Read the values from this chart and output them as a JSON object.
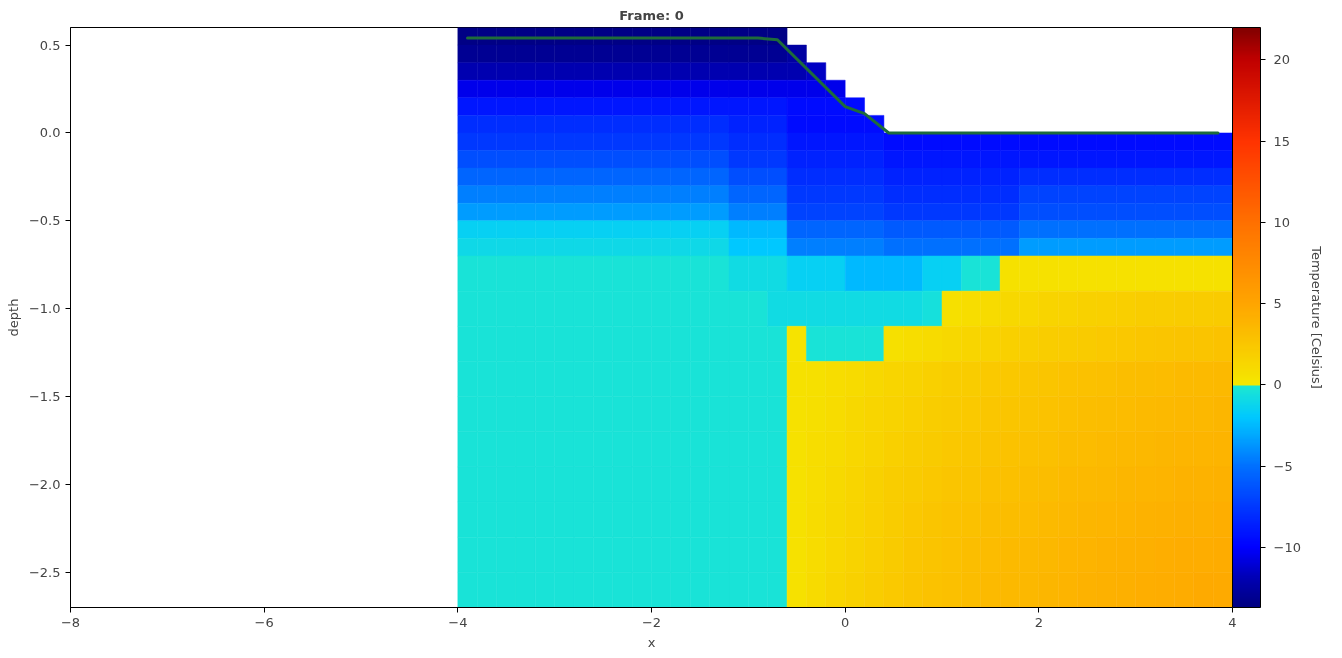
{
  "chart_data": {
    "type": "heatmap",
    "title": "Frame: 0",
    "xlabel": "x",
    "ylabel": "depth",
    "clabel": "Temperature [Celsius]",
    "xlim": [
      -8,
      4
    ],
    "ylim": [
      -2.7,
      0.6
    ],
    "xticks": [
      {
        "value": -8,
        "label": "−8"
      },
      {
        "value": -6,
        "label": "−6"
      },
      {
        "value": -4,
        "label": "−4"
      },
      {
        "value": -2,
        "label": "−2"
      },
      0,
      2,
      4
    ],
    "yticks": [
      {
        "value": -2.5,
        "label": "−2.5"
      },
      {
        "value": -2,
        "label": "−2.0"
      },
      {
        "value": -1.5,
        "label": "−1.5"
      },
      {
        "value": -1,
        "label": "−1.0"
      },
      {
        "value": -0.5,
        "label": "−0.5"
      },
      {
        "value": 0,
        "label": "0.0"
      },
      0.5
    ],
    "clim": [
      -13.7,
      22
    ],
    "cticks": [
      {
        "value": -10,
        "label": "−10"
      },
      {
        "value": -5,
        "label": "−5"
      },
      0,
      5,
      10,
      15,
      20
    ],
    "x": [
      -3.9,
      -3.7,
      -3.5,
      -3.3,
      -3.1,
      -2.9,
      -2.7,
      -2.5,
      -2.3,
      -2.1,
      -1.9,
      -1.7,
      -1.5,
      -1.3,
      -1.1,
      -0.9,
      -0.7,
      -0.5,
      -0.3,
      -0.1,
      0.1,
      0.3,
      0.5,
      0.7,
      0.9,
      1.1,
      1.3,
      1.5,
      1.7,
      1.9,
      2.1,
      2.3,
      2.5,
      2.7,
      2.9,
      3.1,
      3.3,
      3.5,
      3.7,
      3.9
    ],
    "y": [
      0.55,
      0.45,
      0.35,
      0.25,
      0.15,
      0.05,
      -0.05,
      -0.15,
      -0.25,
      -0.35,
      -0.45,
      -0.55,
      -0.65,
      -0.8,
      -1.0,
      -1.2,
      -1.4,
      -1.6,
      -1.8,
      -2.0,
      -2.2,
      -2.4,
      -2.6
    ],
    "cells": [
      [
        -13.5,
        -13.5,
        -13.5,
        -13.5,
        -13.5,
        -13.5,
        -13.5,
        -13.5,
        -13.5,
        -13.5,
        -13.5,
        -13.5,
        -13.5,
        -13.5,
        -13.5,
        -13.5,
        -13.5,
        null,
        null,
        null,
        null,
        null,
        null,
        null,
        null,
        null,
        null,
        null,
        null,
        null,
        null,
        null,
        null,
        null,
        null,
        null,
        null,
        null,
        null,
        null
      ],
      [
        -13,
        -13,
        -13,
        -13,
        -13,
        -13,
        -13,
        -13,
        -13,
        -13,
        -13,
        -13,
        -13,
        -13,
        -13,
        -13,
        -13,
        -12.5,
        null,
        null,
        null,
        null,
        null,
        null,
        null,
        null,
        null,
        null,
        null,
        null,
        null,
        null,
        null,
        null,
        null,
        null,
        null,
        null,
        null,
        null
      ],
      [
        -12,
        -12,
        -12,
        -12,
        -12,
        -12,
        -12,
        -12,
        -12,
        -12,
        -12,
        -12,
        -12,
        -12,
        -12,
        -12,
        -12,
        -12,
        -11.5,
        null,
        null,
        null,
        null,
        null,
        null,
        null,
        null,
        null,
        null,
        null,
        null,
        null,
        null,
        null,
        null,
        null,
        null,
        null,
        null,
        null
      ],
      [
        -10.5,
        -10.5,
        -10.5,
        -10.5,
        -10.5,
        -10.5,
        -10.5,
        -10.5,
        -10.5,
        -10.5,
        -10.5,
        -10.5,
        -10.5,
        -10.5,
        -10.5,
        -10.5,
        -10.5,
        -10.5,
        -10.5,
        -10.5,
        null,
        null,
        null,
        null,
        null,
        null,
        null,
        null,
        null,
        null,
        null,
        null,
        null,
        null,
        null,
        null,
        null,
        null,
        null,
        null
      ],
      [
        -9,
        -9,
        -9,
        -9,
        -9,
        -9,
        -9,
        -9,
        -9,
        -9,
        -9,
        -9,
        -9,
        -9,
        -9,
        -9,
        -9,
        -9.5,
        -9.5,
        -9.5,
        -9.5,
        null,
        null,
        null,
        null,
        null,
        null,
        null,
        null,
        null,
        null,
        null,
        null,
        null,
        null,
        null,
        null,
        null,
        null,
        null
      ],
      [
        -8,
        -8,
        -8,
        -8,
        -8,
        -8,
        -8,
        -8,
        -8,
        -8,
        -8,
        -8,
        -8,
        -8,
        -8.5,
        -8.5,
        -8.5,
        -9.5,
        -9.5,
        -9.5,
        -9.5,
        -9.5,
        null,
        null,
        null,
        null,
        null,
        null,
        null,
        null,
        null,
        null,
        null,
        null,
        null,
        null,
        null,
        null,
        null,
        null
      ],
      [
        -7.5,
        -7.5,
        -7.5,
        -7.5,
        -7.5,
        -7.5,
        -7.5,
        -7.5,
        -7.5,
        -7.5,
        -7.5,
        -7.5,
        -7.5,
        -7.5,
        -8,
        -8,
        -8,
        -9,
        -9,
        -9,
        -9,
        -9,
        -9.5,
        -9.5,
        -9.5,
        -9.5,
        -9.5,
        -9.5,
        -9.5,
        -9.5,
        -9.5,
        -9.5,
        -9.5,
        -9.5,
        -9.5,
        -9.5,
        -9.5,
        -9.5,
        -9.5,
        -9.5
      ],
      [
        -6.5,
        -6.5,
        -6.5,
        -6.5,
        -6.5,
        -6.5,
        -6.5,
        -6.5,
        -6.5,
        -6.5,
        -6.5,
        -6.5,
        -6.5,
        -6.5,
        -7.5,
        -7.5,
        -7.5,
        -8.5,
        -8.5,
        -8.5,
        -8.5,
        -8.5,
        -9,
        -9,
        -9,
        -9,
        -9,
        -9,
        -9,
        -9,
        -9,
        -9,
        -9,
        -9,
        -9,
        -9,
        -9,
        -9,
        -9,
        -9
      ],
      [
        -5.5,
        -5.5,
        -5.5,
        -5.5,
        -5.5,
        -5.5,
        -5.5,
        -5.5,
        -5.5,
        -5.5,
        -5.5,
        -5.5,
        -5.5,
        -5.5,
        -6.5,
        -6.5,
        -6.5,
        -8,
        -8,
        -8,
        -8,
        -8,
        -8.5,
        -8.5,
        -8.5,
        -8.5,
        -8.5,
        -8.5,
        -8.5,
        -8,
        -8,
        -8,
        -8,
        -8,
        -8,
        -8,
        -8,
        -8,
        -8,
        -8
      ],
      [
        -4.5,
        -4.5,
        -4.5,
        -4.5,
        -4.5,
        -4.5,
        -4.5,
        -4.5,
        -4.5,
        -4.5,
        -4.5,
        -4.5,
        -4.5,
        -4.5,
        -5.5,
        -5.5,
        -5.5,
        -7.5,
        -7.5,
        -7.5,
        -7.5,
        -7.5,
        -8,
        -8,
        -8,
        -8,
        -8,
        -8,
        -8,
        -7,
        -7,
        -7,
        -7,
        -7,
        -7,
        -7,
        -7,
        -7,
        -7,
        -7
      ],
      [
        -3.5,
        -3.5,
        -3.5,
        -3.5,
        -3.5,
        -3.5,
        -3.5,
        -3.5,
        -3.5,
        -3.5,
        -3.5,
        -3.5,
        -3.5,
        -3.5,
        -4.5,
        -4.5,
        -4.5,
        -7,
        -7,
        -7,
        -7,
        -7,
        -7.5,
        -7.5,
        -7.5,
        -7.5,
        -7.5,
        -7.5,
        -7.5,
        -6.5,
        -6.5,
        -6.5,
        -6.5,
        -6.5,
        -6.5,
        -6.5,
        -6.5,
        -6.5,
        -6.5,
        -6.5
      ],
      [
        -1.5,
        -1.5,
        -1.5,
        -1.5,
        -1.5,
        -1.5,
        -1.5,
        -1.5,
        -1.5,
        -1.5,
        -1.5,
        -1.5,
        -1.5,
        -1.5,
        -2.5,
        -2.5,
        -2.5,
        -5.5,
        -5.5,
        -5.5,
        -5.5,
        -5.5,
        -6,
        -6,
        -6,
        -6,
        -6,
        -6,
        -6,
        -5,
        -5,
        -5,
        -5,
        -5,
        -5,
        -5,
        -5,
        -5,
        -5,
        -5
      ],
      [
        -1,
        -1,
        -1,
        -1,
        -1,
        -1,
        -1,
        -1,
        -1,
        -1,
        -1,
        -1,
        -1,
        -1,
        -2,
        -2,
        -2,
        -4.5,
        -4.5,
        -4.5,
        -4.5,
        -4.5,
        -5,
        -5,
        -5,
        -5,
        -5,
        -5,
        -5,
        -3.5,
        -3.5,
        -3.5,
        -3.5,
        -3.5,
        -3.5,
        -3.5,
        -3.5,
        -3.5,
        -3.5,
        -3.5
      ],
      [
        -0.3,
        -0.3,
        -0.3,
        -0.3,
        -0.3,
        -0.3,
        -0.3,
        -0.3,
        -0.3,
        -0.3,
        -0.3,
        -0.3,
        -0.3,
        -0.3,
        -0.8,
        -0.8,
        -0.8,
        -1.5,
        -1.5,
        -1.5,
        -2.5,
        -2.5,
        -2.5,
        -2.5,
        -1.5,
        -1.5,
        -0.3,
        -0.3,
        0.5,
        0.5,
        0.5,
        0.5,
        0.5,
        0.5,
        0.5,
        0.5,
        0.5,
        0.5,
        0.5,
        0.5
      ],
      [
        -0.3,
        -0.3,
        -0.3,
        -0.3,
        -0.3,
        -0.3,
        -0.3,
        -0.3,
        -0.3,
        -0.3,
        -0.3,
        -0.3,
        -0.3,
        -0.3,
        -0.3,
        -0.3,
        -0.8,
        -0.8,
        -0.8,
        -0.8,
        -0.8,
        -0.8,
        -0.8,
        -0.8,
        -0.5,
        0.6,
        0.8,
        1,
        1.2,
        1.3,
        1.5,
        1.6,
        1.7,
        1.8,
        1.9,
        2,
        2,
        2.1,
        2.1,
        2.2
      ],
      [
        -0.3,
        -0.3,
        -0.3,
        -0.3,
        -0.3,
        -0.3,
        -0.3,
        -0.3,
        -0.3,
        -0.3,
        -0.3,
        -0.3,
        -0.3,
        -0.3,
        -0.3,
        -0.3,
        -0.3,
        0.4,
        -0.3,
        -0.3,
        -0.3,
        -0.3,
        0.6,
        0.8,
        1,
        1.2,
        1.4,
        1.6,
        1.8,
        1.9,
        2,
        2.1,
        2.2,
        2.3,
        2.4,
        2.5,
        2.6,
        2.7,
        2.7,
        2.8
      ],
      [
        -0.3,
        -0.3,
        -0.3,
        -0.3,
        -0.3,
        -0.3,
        -0.3,
        -0.3,
        -0.3,
        -0.3,
        -0.3,
        -0.3,
        -0.3,
        -0.3,
        -0.3,
        -0.3,
        -0.3,
        0.5,
        0.6,
        0.8,
        1,
        1.2,
        1.4,
        1.6,
        1.8,
        2,
        2.1,
        2.3,
        2.4,
        2.5,
        2.6,
        2.8,
        2.9,
        3,
        3.1,
        3.2,
        3.3,
        3.4,
        3.4,
        3.5
      ],
      [
        -0.3,
        -0.3,
        -0.3,
        -0.3,
        -0.3,
        -0.3,
        -0.3,
        -0.3,
        -0.3,
        -0.3,
        -0.3,
        -0.3,
        -0.3,
        -0.3,
        -0.3,
        -0.3,
        -0.3,
        0.5,
        0.7,
        0.9,
        1.2,
        1.4,
        1.6,
        1.8,
        2,
        2.2,
        2.3,
        2.5,
        2.6,
        2.7,
        2.8,
        3,
        3.1,
        3.2,
        3.3,
        3.4,
        3.5,
        3.6,
        3.6,
        3.7
      ],
      [
        -0.3,
        -0.3,
        -0.3,
        -0.3,
        -0.3,
        -0.3,
        -0.3,
        -0.3,
        -0.3,
        -0.3,
        -0.3,
        -0.3,
        -0.3,
        -0.3,
        -0.3,
        -0.3,
        -0.3,
        0.5,
        0.8,
        1,
        1.3,
        1.5,
        1.8,
        2,
        2.2,
        2.4,
        2.5,
        2.7,
        2.8,
        2.9,
        3,
        3.2,
        3.3,
        3.4,
        3.5,
        3.6,
        3.7,
        3.8,
        3.8,
        3.9
      ],
      [
        -0.3,
        -0.3,
        -0.3,
        -0.3,
        -0.3,
        -0.3,
        -0.3,
        -0.3,
        -0.3,
        -0.3,
        -0.3,
        -0.3,
        -0.3,
        -0.3,
        -0.3,
        -0.3,
        -0.3,
        0.5,
        0.8,
        1.1,
        1.4,
        1.7,
        2,
        2.2,
        2.4,
        2.6,
        2.7,
        2.9,
        3,
        3.1,
        3.2,
        3.4,
        3.5,
        3.6,
        3.7,
        3.8,
        3.9,
        4,
        4,
        4.1
      ],
      [
        -0.3,
        -0.3,
        -0.3,
        -0.3,
        -0.3,
        -0.3,
        -0.3,
        -0.3,
        -0.3,
        -0.3,
        -0.3,
        -0.3,
        -0.3,
        -0.3,
        -0.3,
        -0.3,
        -0.3,
        0.5,
        0.9,
        1.2,
        1.5,
        1.8,
        2.1,
        2.4,
        2.6,
        2.8,
        2.9,
        3.1,
        3.2,
        3.3,
        3.4,
        3.6,
        3.7,
        3.8,
        3.9,
        4,
        4.1,
        4.2,
        4.2,
        4.3
      ],
      [
        -0.3,
        -0.3,
        -0.3,
        -0.3,
        -0.3,
        -0.3,
        -0.3,
        -0.3,
        -0.3,
        -0.3,
        -0.3,
        -0.3,
        -0.3,
        -0.3,
        -0.3,
        -0.3,
        -0.3,
        0.5,
        0.9,
        1.3,
        1.6,
        1.9,
        2.2,
        2.5,
        2.7,
        2.9,
        3.1,
        3.3,
        3.4,
        3.5,
        3.6,
        3.8,
        3.9,
        4,
        4.1,
        4.2,
        4.3,
        4.4,
        4.4,
        4.5
      ],
      [
        -0.3,
        -0.3,
        -0.3,
        -0.3,
        -0.3,
        -0.3,
        -0.3,
        -0.3,
        -0.3,
        -0.3,
        -0.3,
        -0.3,
        -0.3,
        -0.3,
        -0.3,
        -0.3,
        -0.3,
        0.5,
        1,
        1.4,
        1.7,
        2,
        2.3,
        2.6,
        2.8,
        3,
        3.2,
        3.4,
        3.5,
        3.6,
        3.7,
        3.9,
        4,
        4.1,
        4.2,
        4.3,
        4.4,
        4.5,
        4.6,
        4.6
      ]
    ],
    "series": [
      {
        "type": "line",
        "color": "#1e6b3a",
        "x": [
          -3.9,
          -0.9,
          -0.7,
          0.0,
          0.2,
          0.45,
          3.85
        ],
        "values": [
          0.54,
          0.54,
          0.53,
          0.15,
          0.11,
          0.0,
          0.0
        ]
      }
    ]
  }
}
